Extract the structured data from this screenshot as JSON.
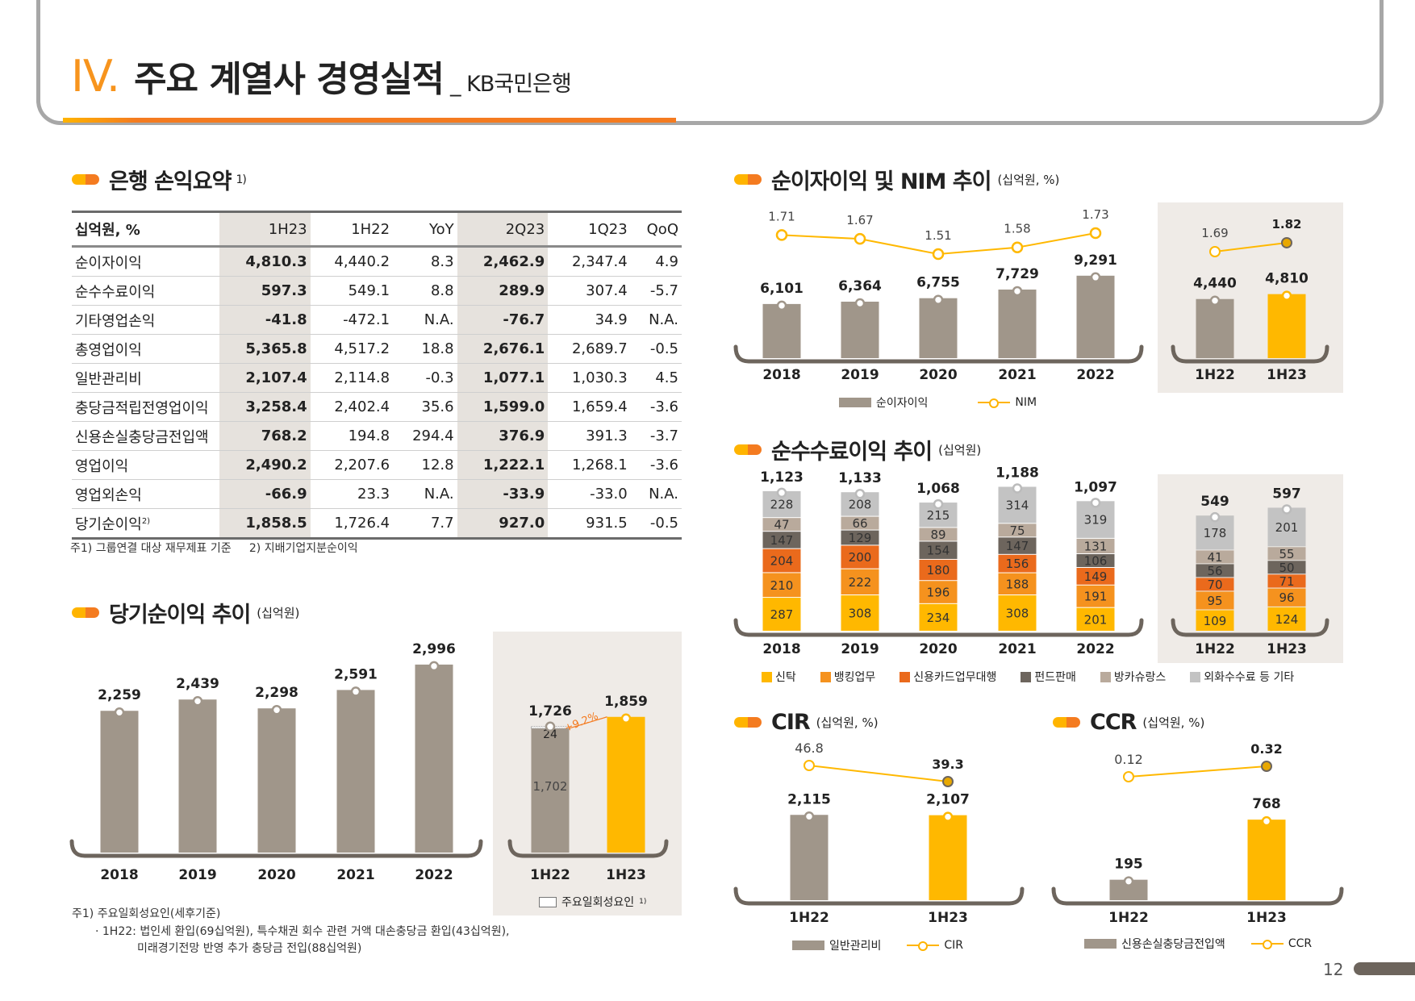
{
  "header": {
    "number": "IV.",
    "title": "주요 계열사 경영실적",
    "subtitle": "_ KB국민은행"
  },
  "summary": {
    "title": "은행 손익요약",
    "title_note": "1)",
    "columns": [
      "십억원, %",
      "1H23",
      "1H22",
      "YoY",
      "2Q23",
      "1Q23",
      "QoQ"
    ],
    "rows": [
      [
        "순이자이익",
        "4,810.3",
        "4,440.2",
        "8.3",
        "2,462.9",
        "2,347.4",
        "4.9"
      ],
      [
        "순수수료이익",
        "597.3",
        "549.1",
        "8.8",
        "289.9",
        "307.4",
        "-5.7"
      ],
      [
        "기타영업손익",
        "-41.8",
        "-472.1",
        "N.A.",
        "-76.7",
        "34.9",
        "N.A."
      ],
      [
        "총영업이익",
        "5,365.8",
        "4,517.2",
        "18.8",
        "2,676.1",
        "2,689.7",
        "-0.5"
      ],
      [
        "일반관리비",
        "2,107.4",
        "2,114.8",
        "-0.3",
        "1,077.1",
        "1,030.3",
        "4.5"
      ],
      [
        "충당금적립전영업이익",
        "3,258.4",
        "2,402.4",
        "35.6",
        "1,599.0",
        "1,659.4",
        "-3.6"
      ],
      [
        "신용손실충당금전입액",
        "768.2",
        "194.8",
        "294.4",
        "376.9",
        "391.3",
        "-3.7"
      ],
      [
        "영업이익",
        "2,490.2",
        "2,207.6",
        "12.8",
        "1,222.1",
        "1,268.1",
        "-3.6"
      ],
      [
        "영업외손익",
        "-66.9",
        "23.3",
        "N.A.",
        "-33.9",
        "-33.0",
        "N.A."
      ],
      [
        "당기순이익",
        "1,858.5",
        "1,726.4",
        "7.7",
        "927.0",
        "931.5",
        "-0.5"
      ]
    ],
    "last_row_note": "2)",
    "footnote1": "주1) 그룹연결 대상 재무제표 기준",
    "footnote2": "2) 지배기업지분순이익"
  },
  "net_income_section": {
    "title": "당기순이익 추이",
    "unit": "(십억원)",
    "legend_oneoff": "주요일회성요인",
    "legend_oneoff_note": "1)",
    "note1": "주1) 주요일회성요인(세후기준)",
    "note2": "· 1H22: 법인세 환입(69십억원), 특수채권 회수 관련 거액 대손충당금 환입(43십억원),",
    "note3": "미래경기전망 반영 추가 충당금 전입(88십억원)"
  },
  "nii_section": {
    "title": "순이자이익 및 NIM 추이",
    "unit": "(십억원, %)",
    "legend_bar": "순이자이익",
    "legend_line": "NIM"
  },
  "fee_section": {
    "title": "순수수료이익 추이",
    "unit": "(십억원)"
  },
  "cir_section": {
    "title": "CIR",
    "unit": "(십억원, %)",
    "legend_bar": "일반관리비",
    "legend_line": "CIR"
  },
  "ccr_section": {
    "title": "CCR",
    "unit": "(십억원, %)",
    "legend_bar": "신용손실충당금전입액",
    "legend_line": "CCR"
  },
  "page_number": "12",
  "colors": {
    "accent": "#f7941d",
    "bar_gray": "#a0968a",
    "bar_yellow": "#ffb800",
    "panel": "#efebe7",
    "axis": "#6d655d"
  },
  "chart_data": [
    {
      "id": "net_income",
      "type": "bar",
      "categories": [
        "2018",
        "2019",
        "2020",
        "2021",
        "2022"
      ],
      "values": [
        2259,
        2439,
        2298,
        2591,
        2996
      ],
      "half": {
        "categories": [
          "1H22",
          "1H23"
        ],
        "values": [
          1726,
          1859
        ],
        "oneoff_1H22": 24,
        "base_1H22": 1702,
        "growth_label": "+9.2%"
      }
    },
    {
      "id": "nii_nim",
      "type": "bar+line",
      "categories": [
        "2018",
        "2019",
        "2020",
        "2021",
        "2022"
      ],
      "series": [
        {
          "name": "순이자이익",
          "values": [
            6101,
            6364,
            6755,
            7729,
            9291
          ]
        },
        {
          "name": "NIM",
          "values": [
            1.71,
            1.67,
            1.51,
            1.58,
            1.73
          ]
        }
      ],
      "half": {
        "categories": [
          "1H22",
          "1H23"
        ],
        "nii": [
          4440,
          4810
        ],
        "nim": [
          1.69,
          1.82
        ]
      }
    },
    {
      "id": "fee",
      "type": "stacked-bar",
      "categories": [
        "2018",
        "2019",
        "2020",
        "2021",
        "2022"
      ],
      "series": [
        {
          "name": "신탁",
          "color": "#ffb800",
          "values": [
            287,
            308,
            234,
            308,
            201
          ],
          "half": [
            109,
            124
          ]
        },
        {
          "name": "뱅킹업무",
          "color": "#f5921e",
          "values": [
            210,
            222,
            196,
            188,
            191
          ],
          "half": [
            95,
            96
          ]
        },
        {
          "name": "신용카드업무대행",
          "color": "#ea6a1c",
          "values": [
            204,
            200,
            180,
            156,
            149
          ],
          "half": [
            70,
            71
          ]
        },
        {
          "name": "펀드판매",
          "color": "#6d655d",
          "values": [
            147,
            129,
            154,
            147,
            106
          ],
          "half": [
            56,
            50
          ]
        },
        {
          "name": "방카슈랑스",
          "color": "#b9aa9c",
          "values": [
            47,
            66,
            89,
            75,
            131
          ],
          "half": [
            41,
            55
          ]
        },
        {
          "name": "외화수수료 등 기타",
          "color": "#c3c3c3",
          "values": [
            228,
            208,
            215,
            314,
            319
          ],
          "half": [
            178,
            201
          ]
        }
      ],
      "totals": [
        1123,
        1133,
        1068,
        1188,
        1097
      ],
      "half": {
        "categories": [
          "1H22",
          "1H23"
        ],
        "totals": [
          549,
          597
        ]
      }
    },
    {
      "id": "cir",
      "type": "bar+line",
      "categories": [
        "1H22",
        "1H23"
      ],
      "series": [
        {
          "name": "일반관리비",
          "values": [
            2115,
            2107
          ]
        },
        {
          "name": "CIR",
          "values": [
            46.8,
            39.3
          ]
        }
      ]
    },
    {
      "id": "ccr",
      "type": "bar+line",
      "categories": [
        "1H22",
        "1H23"
      ],
      "series": [
        {
          "name": "신용손실충당금전입액",
          "values": [
            195,
            768
          ]
        },
        {
          "name": "CCR",
          "values": [
            0.12,
            0.32
          ]
        }
      ]
    }
  ]
}
